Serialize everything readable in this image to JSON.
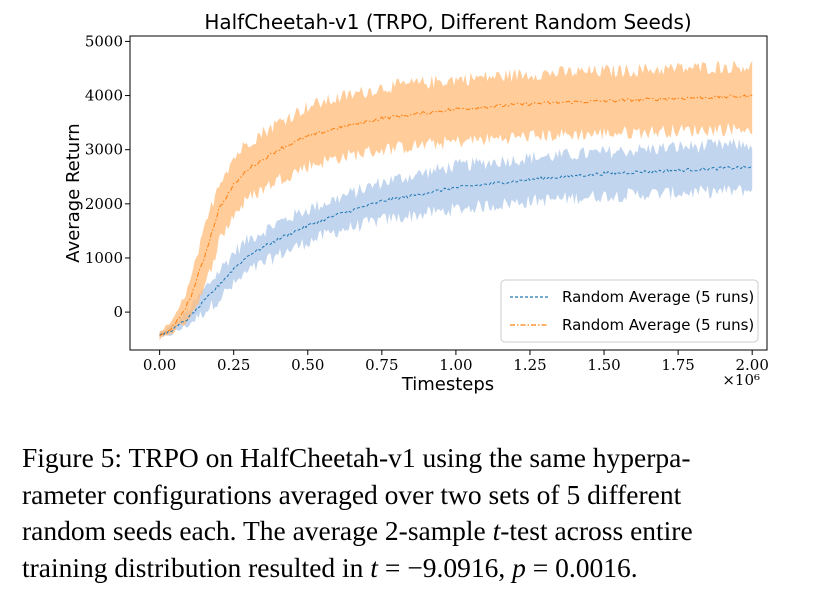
{
  "chart_data": {
    "type": "line",
    "title": "HalfCheetah-v1 (TRPO, Different Random Seeds)",
    "xlabel": "Timesteps",
    "ylabel": "Average Return",
    "x_scale_label": "×10⁶",
    "xlim": [
      -0.1,
      2.05
    ],
    "ylim": [
      -700,
      5100
    ],
    "xticks": [
      "0.00",
      "0.25",
      "0.50",
      "0.75",
      "1.00",
      "1.25",
      "1.50",
      "1.75",
      "2.00"
    ],
    "yticks": [
      "0",
      "1000",
      "2000",
      "3000",
      "4000",
      "5000"
    ],
    "grid": false,
    "legend_position": "lower right",
    "x": [
      0,
      0.05,
      0.1,
      0.15,
      0.2,
      0.25,
      0.3,
      0.4,
      0.5,
      0.6,
      0.75,
      1.0,
      1.25,
      1.5,
      1.75,
      2.0
    ],
    "series": [
      {
        "name": "Random Average (5 runs)",
        "color": "#1f77b4",
        "band_color": "#aec7e8",
        "linestyle": "dashed",
        "values": [
          -450,
          -300,
          -100,
          200,
          500,
          800,
          1050,
          1350,
          1600,
          1800,
          2050,
          2300,
          2450,
          2560,
          2620,
          2680
        ],
        "band_low": [
          -500,
          -380,
          -220,
          0,
          250,
          500,
          750,
          1050,
          1300,
          1500,
          1700,
          1900,
          2050,
          2150,
          2200,
          2250
        ],
        "band_high": [
          -380,
          -220,
          50,
          420,
          750,
          1100,
          1350,
          1650,
          1900,
          2100,
          2400,
          2700,
          2850,
          2950,
          3050,
          3100
        ]
      },
      {
        "name": "Random Average (5 runs)",
        "color": "#ff7f0e",
        "band_color": "#ffbb78",
        "linestyle": "dashdot",
        "values": [
          -450,
          -250,
          200,
          1000,
          1900,
          2350,
          2650,
          3000,
          3250,
          3400,
          3580,
          3750,
          3850,
          3900,
          3950,
          3990
        ],
        "band_low": [
          -500,
          -350,
          -100,
          400,
          1300,
          1800,
          2100,
          2450,
          2700,
          2850,
          3000,
          3150,
          3250,
          3300,
          3350,
          3400
        ],
        "band_high": [
          -380,
          -120,
          500,
          1500,
          2400,
          2850,
          3150,
          3500,
          3800,
          3950,
          4150,
          4300,
          4400,
          4450,
          4500,
          4550
        ]
      }
    ]
  },
  "caption": {
    "line1": "Figure 5: TRPO on HalfCheetah-v1 using the same hyperpa-",
    "line2": "rameter configurations averaged over two sets of 5 different",
    "line3_a": "random seeds each. The average 2-sample ",
    "line3_var": "t",
    "line3_b": "-test across entire",
    "line4_a": "training distribution resulted in ",
    "line4_t": "t",
    "line4_eq": " = −9.0916, ",
    "line4_p": "p",
    "line4_end": " = 0.0016."
  }
}
